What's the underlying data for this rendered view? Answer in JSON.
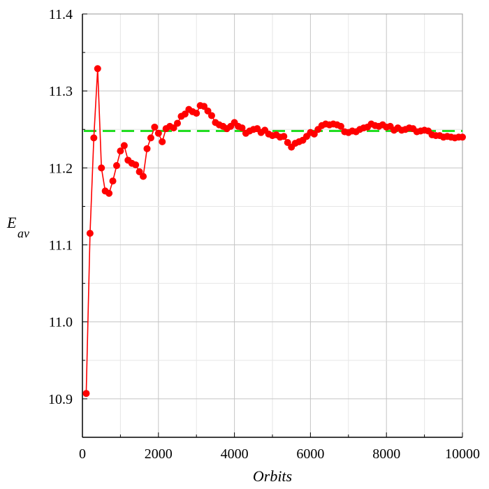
{
  "chart_data": {
    "type": "line",
    "xlabel": "Orbits",
    "ylabel": "E",
    "ylabel_sub": "av",
    "xlim": [
      0,
      10000
    ],
    "ylim": [
      10.85,
      11.4
    ],
    "grid": true,
    "x_ticks": [
      "0",
      "2000",
      "4000",
      "6000",
      "8000",
      "10000"
    ],
    "y_ticks": [
      "10.9",
      "11.0",
      "11.1",
      "11.2",
      "11.3",
      "11.4"
    ],
    "reference_line": {
      "y": 11.248,
      "style": "dashed",
      "color": "#22dd22"
    },
    "series": [
      {
        "color": "#ff0000",
        "x": [
          100,
          200,
          300,
          400,
          500,
          600,
          700,
          800,
          900,
          1000,
          1100,
          1200,
          1300,
          1400,
          1500,
          1600,
          1700,
          1800,
          1900,
          2000,
          2100,
          2200,
          2300,
          2400,
          2500,
          2600,
          2700,
          2800,
          2900,
          3000,
          3100,
          3200,
          3300,
          3400,
          3500,
          3600,
          3700,
          3800,
          3900,
          4000,
          4100,
          4200,
          4300,
          4400,
          4500,
          4600,
          4700,
          4800,
          4900,
          5000,
          5100,
          5200,
          5300,
          5400,
          5500,
          5600,
          5700,
          5800,
          5900,
          6000,
          6100,
          6200,
          6300,
          6400,
          6500,
          6600,
          6700,
          6800,
          6900,
          7000,
          7100,
          7200,
          7300,
          7400,
          7500,
          7600,
          7700,
          7800,
          7900,
          8000,
          8100,
          8200,
          8300,
          8400,
          8500,
          8600,
          8700,
          8800,
          8900,
          9000,
          9100,
          9200,
          9300,
          9400,
          9500,
          9600,
          9700,
          9800,
          9900,
          10000
        ],
        "y": [
          10.907,
          11.115,
          11.239,
          11.329,
          11.2,
          11.17,
          11.167,
          11.183,
          11.203,
          11.222,
          11.229,
          11.21,
          11.206,
          11.204,
          11.195,
          11.189,
          11.225,
          11.239,
          11.253,
          11.245,
          11.234,
          11.251,
          11.254,
          11.252,
          11.258,
          11.267,
          11.27,
          11.276,
          11.273,
          11.271,
          11.281,
          11.28,
          11.274,
          11.268,
          11.259,
          11.256,
          11.254,
          11.251,
          11.254,
          11.259,
          11.254,
          11.252,
          11.245,
          11.248,
          11.25,
          11.251,
          11.246,
          11.249,
          11.244,
          11.242,
          11.243,
          11.24,
          11.241,
          11.233,
          11.227,
          11.232,
          11.234,
          11.236,
          11.241,
          11.246,
          11.244,
          11.25,
          11.255,
          11.257,
          11.256,
          11.257,
          11.256,
          11.254,
          11.247,
          11.246,
          11.248,
          11.247,
          11.25,
          11.252,
          11.253,
          11.257,
          11.255,
          11.254,
          11.256,
          11.253,
          11.254,
          11.249,
          11.252,
          11.249,
          11.25,
          11.252,
          11.251,
          11.247,
          11.248,
          11.249,
          11.248,
          11.243,
          11.242,
          11.242,
          11.24,
          11.241,
          11.24,
          11.239,
          11.24,
          11.24
        ]
      }
    ]
  }
}
